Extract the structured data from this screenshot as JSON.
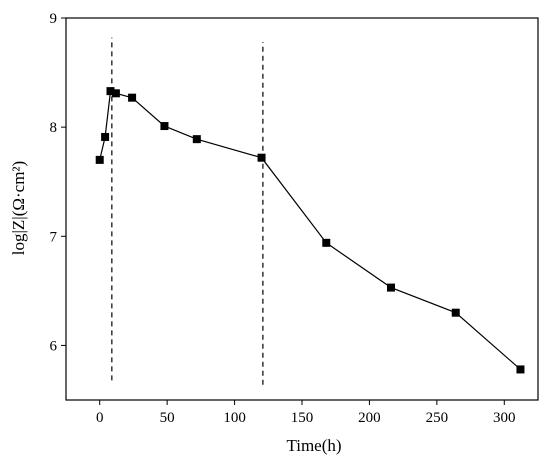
{
  "chart_data": {
    "type": "line",
    "xlabel": "Time(h)",
    "ylabel": "log|Z|(Ω·cm²)",
    "xlim": [
      -25,
      325
    ],
    "ylim": [
      5.5,
      9
    ],
    "xticks": [
      0,
      50,
      100,
      150,
      200,
      250,
      300
    ],
    "yticks": [
      6,
      7,
      8,
      9
    ],
    "grid": false,
    "series": [
      {
        "x": [
          0,
          4,
          8,
          12,
          24,
          48,
          72,
          120,
          168,
          216,
          264,
          312
        ],
        "y": [
          7.7,
          7.91,
          8.33,
          8.31,
          8.27,
          8.01,
          7.89,
          7.72,
          6.94,
          6.53,
          6.3,
          5.78
        ],
        "marker": "square",
        "color": "#000000"
      }
    ],
    "reference_lines": [
      {
        "x": 9,
        "y_from": 5.68,
        "y_to": 8.82,
        "style": "dashed"
      },
      {
        "x": 121,
        "y_from": 5.64,
        "y_to": 8.78,
        "style": "dashed"
      }
    ]
  }
}
